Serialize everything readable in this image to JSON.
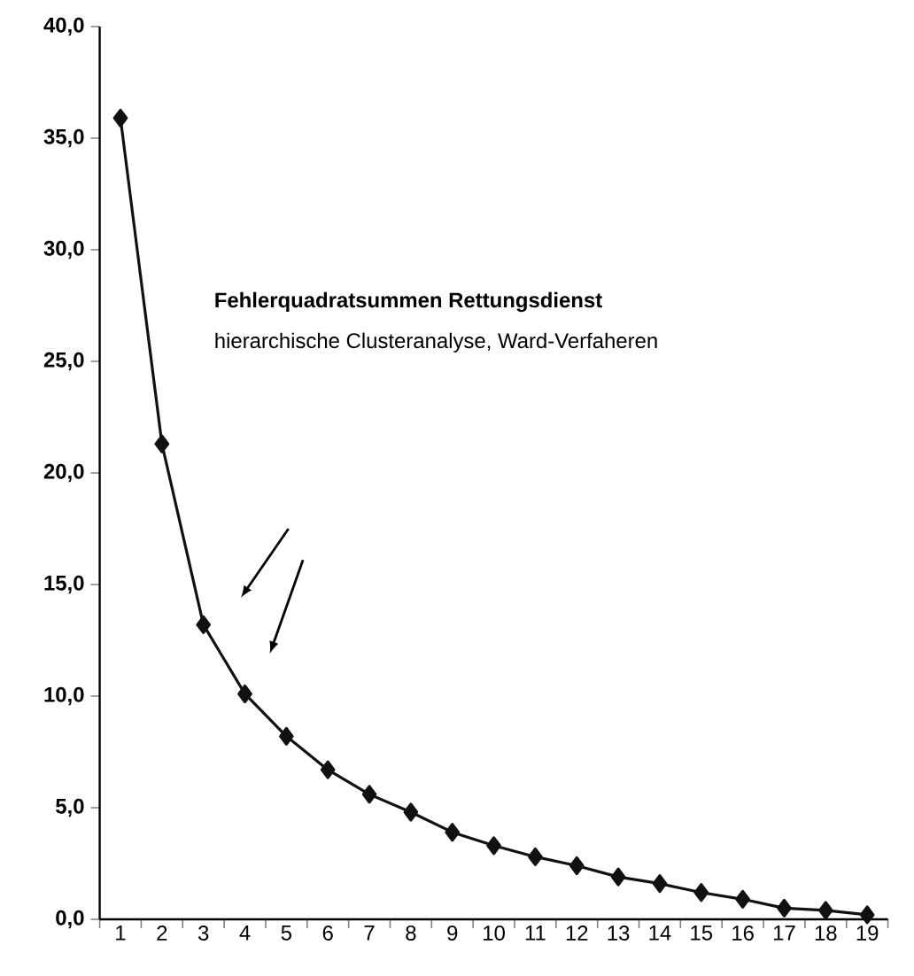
{
  "chart_data": {
    "type": "line",
    "title": "Fehlerquadratsummen Rettungsdienst",
    "subtitle": "hierarchische Clusteranalyse, Ward-Verfaheren",
    "categories": [
      "1",
      "2",
      "3",
      "4",
      "5",
      "6",
      "7",
      "8",
      "9",
      "10",
      "11",
      "12",
      "13",
      "14",
      "15",
      "16",
      "17",
      "18",
      "19"
    ],
    "series": [
      {
        "color": "#111111",
        "values": [
          35.9,
          21.3,
          13.2,
          10.1,
          8.2,
          6.7,
          5.6,
          4.8,
          3.9,
          3.3,
          2.8,
          2.4,
          1.9,
          1.6,
          1.2,
          0.9,
          0.5,
          0.4,
          0.2
        ]
      }
    ],
    "ylim": [
      0,
      40
    ],
    "yticks": [
      {
        "value": 0,
        "label": "0,0"
      },
      {
        "value": 5,
        "label": "5,0"
      },
      {
        "value": 10,
        "label": "10,0"
      },
      {
        "value": 15,
        "label": "15,0"
      },
      {
        "value": 20,
        "label": "20,0"
      },
      {
        "value": 25,
        "label": "25,0"
      },
      {
        "value": 30,
        "label": "30,0"
      },
      {
        "value": 35,
        "label": "35,0"
      },
      {
        "value": 40,
        "label": "40,0"
      }
    ],
    "marker": "diamond",
    "line_style": "solid",
    "grid": false
  }
}
